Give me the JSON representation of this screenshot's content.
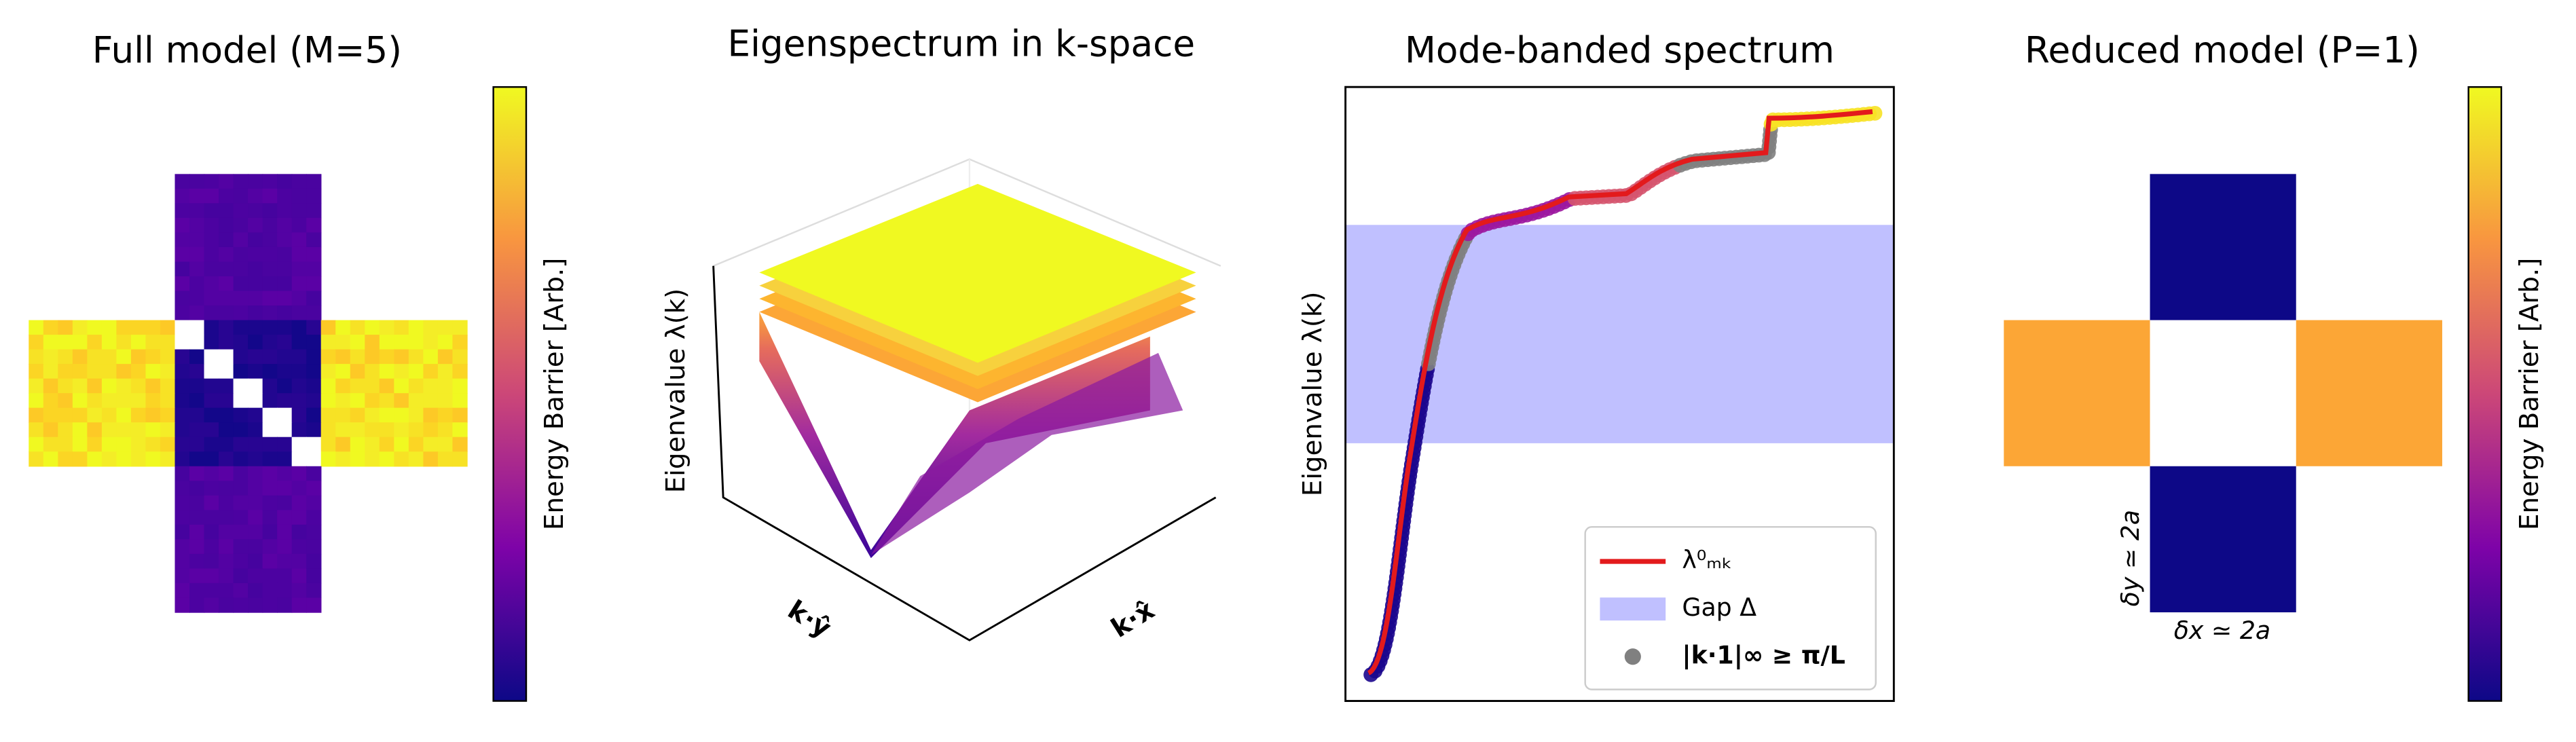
{
  "panels": [
    {
      "title": "Full model (M=5)",
      "colorbar_label": "Energy Barrier [Arb.]"
    },
    {
      "title": "Eigenspectrum in k-space",
      "z_label": "Eigenvalue λ(k)",
      "y_label": "k·ŷ",
      "x_label": "k·x̂"
    },
    {
      "title": "Mode-banded spectrum",
      "y_label": "Eigenvalue λ(k)",
      "legend": [
        "λ⁰ₘₖ",
        "Gap Δ",
        "|k·1|∞ ≥ π/L"
      ]
    },
    {
      "title": "Reduced model (P=1)",
      "colorbar_label": "Energy Barrier [Arb.]",
      "y_annotation": "δy ≃ 2a",
      "x_annotation": "δx ≃ 2a"
    }
  ]
}
